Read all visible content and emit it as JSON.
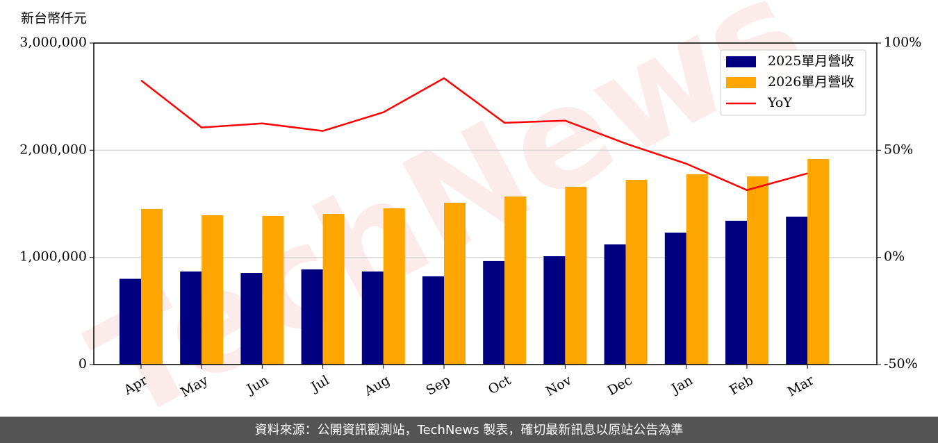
{
  "chart_data": {
    "type": "bar",
    "y_label": "新台幣仟元",
    "watermark": "TechNews",
    "footer": "資料來源：公開資訊觀測站，TechNews 製表，確切最新訊息以原站公告為準",
    "categories": [
      "Apr",
      "May",
      "Jun",
      "Jul",
      "Aug",
      "Sep",
      "Oct",
      "Nov",
      "Dec",
      "Jan",
      "Feb",
      "Mar"
    ],
    "series": [
      {
        "name": "2025單月營收",
        "type": "bar",
        "color": "#000080",
        "values": [
          800000,
          868000,
          855000,
          888000,
          868000,
          823000,
          966000,
          1011000,
          1121000,
          1231000,
          1342000,
          1380000
        ]
      },
      {
        "name": "2026單月營收",
        "type": "bar",
        "color": "#ffa500",
        "values": [
          1452000,
          1393000,
          1387000,
          1406000,
          1458000,
          1510000,
          1568000,
          1659000,
          1724000,
          1776000,
          1756000,
          1918000
        ]
      },
      {
        "name": "YoY",
        "type": "line",
        "axis": "y2",
        "color": "#ff0000",
        "values": [
          82.6,
          60.6,
          62.5,
          59,
          67.7,
          83.6,
          62.8,
          63.8,
          53.1,
          43.7,
          31.4,
          39.2
        ]
      }
    ],
    "ylim": [
      0,
      3000000
    ],
    "yticks": [
      0,
      {
        "value": 1000000,
        "label": "1,000,000"
      },
      {
        "value": 2000000,
        "label": "2,000,000"
      },
      {
        "value": 3000000,
        "label": "3,000,000"
      }
    ],
    "y2lim": [
      -50,
      100
    ],
    "y2ticks": [
      {
        "value": -50,
        "label": "-50%"
      },
      {
        "value": 0,
        "label": "0%"
      },
      {
        "value": 50,
        "label": "50%"
      },
      {
        "value": 100,
        "label": "100%"
      }
    ],
    "grid": true,
    "legend": "upper right"
  }
}
